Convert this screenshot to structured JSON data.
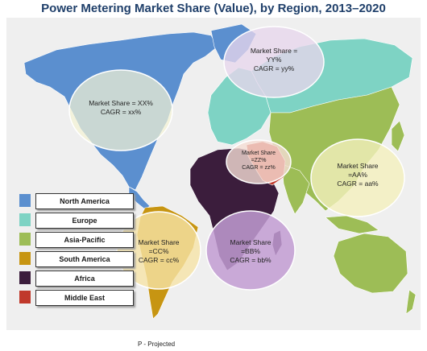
{
  "title": "Power Metering Market Share (Value), by Region, 2013–2020",
  "regions": [
    {
      "name": "North America",
      "color": "#5b8fcf",
      "share_line1": "Market Share = XX%",
      "share_line2": "",
      "cagr": "CAGR = xx%"
    },
    {
      "name": "Europe",
      "color": "#7ed3c4",
      "share_line1": "Market Share =",
      "share_line2": "YY%",
      "cagr": "CAGR = yy%"
    },
    {
      "name": "Asia-Pacific",
      "color": "#9dbd56",
      "share_line1": "Market Share",
      "share_line2": "=AA%",
      "cagr": "CAGR = aa%"
    },
    {
      "name": "South America",
      "color": "#c79512",
      "share_line1": "Market Share",
      "share_line2": "=CC%",
      "cagr": "CAGR = cc%"
    },
    {
      "name": "Africa",
      "color": "#3b1d3c",
      "share_line1": "Market Share",
      "share_line2": "=BB%",
      "cagr": "CAGR = bb%"
    },
    {
      "name": "Middle East",
      "color": "#c0392b",
      "share_line1": "Market Share",
      "share_line2": "=ZZ%",
      "cagr": "CAGR = zz%"
    }
  ],
  "footnote": "P - Projected"
}
